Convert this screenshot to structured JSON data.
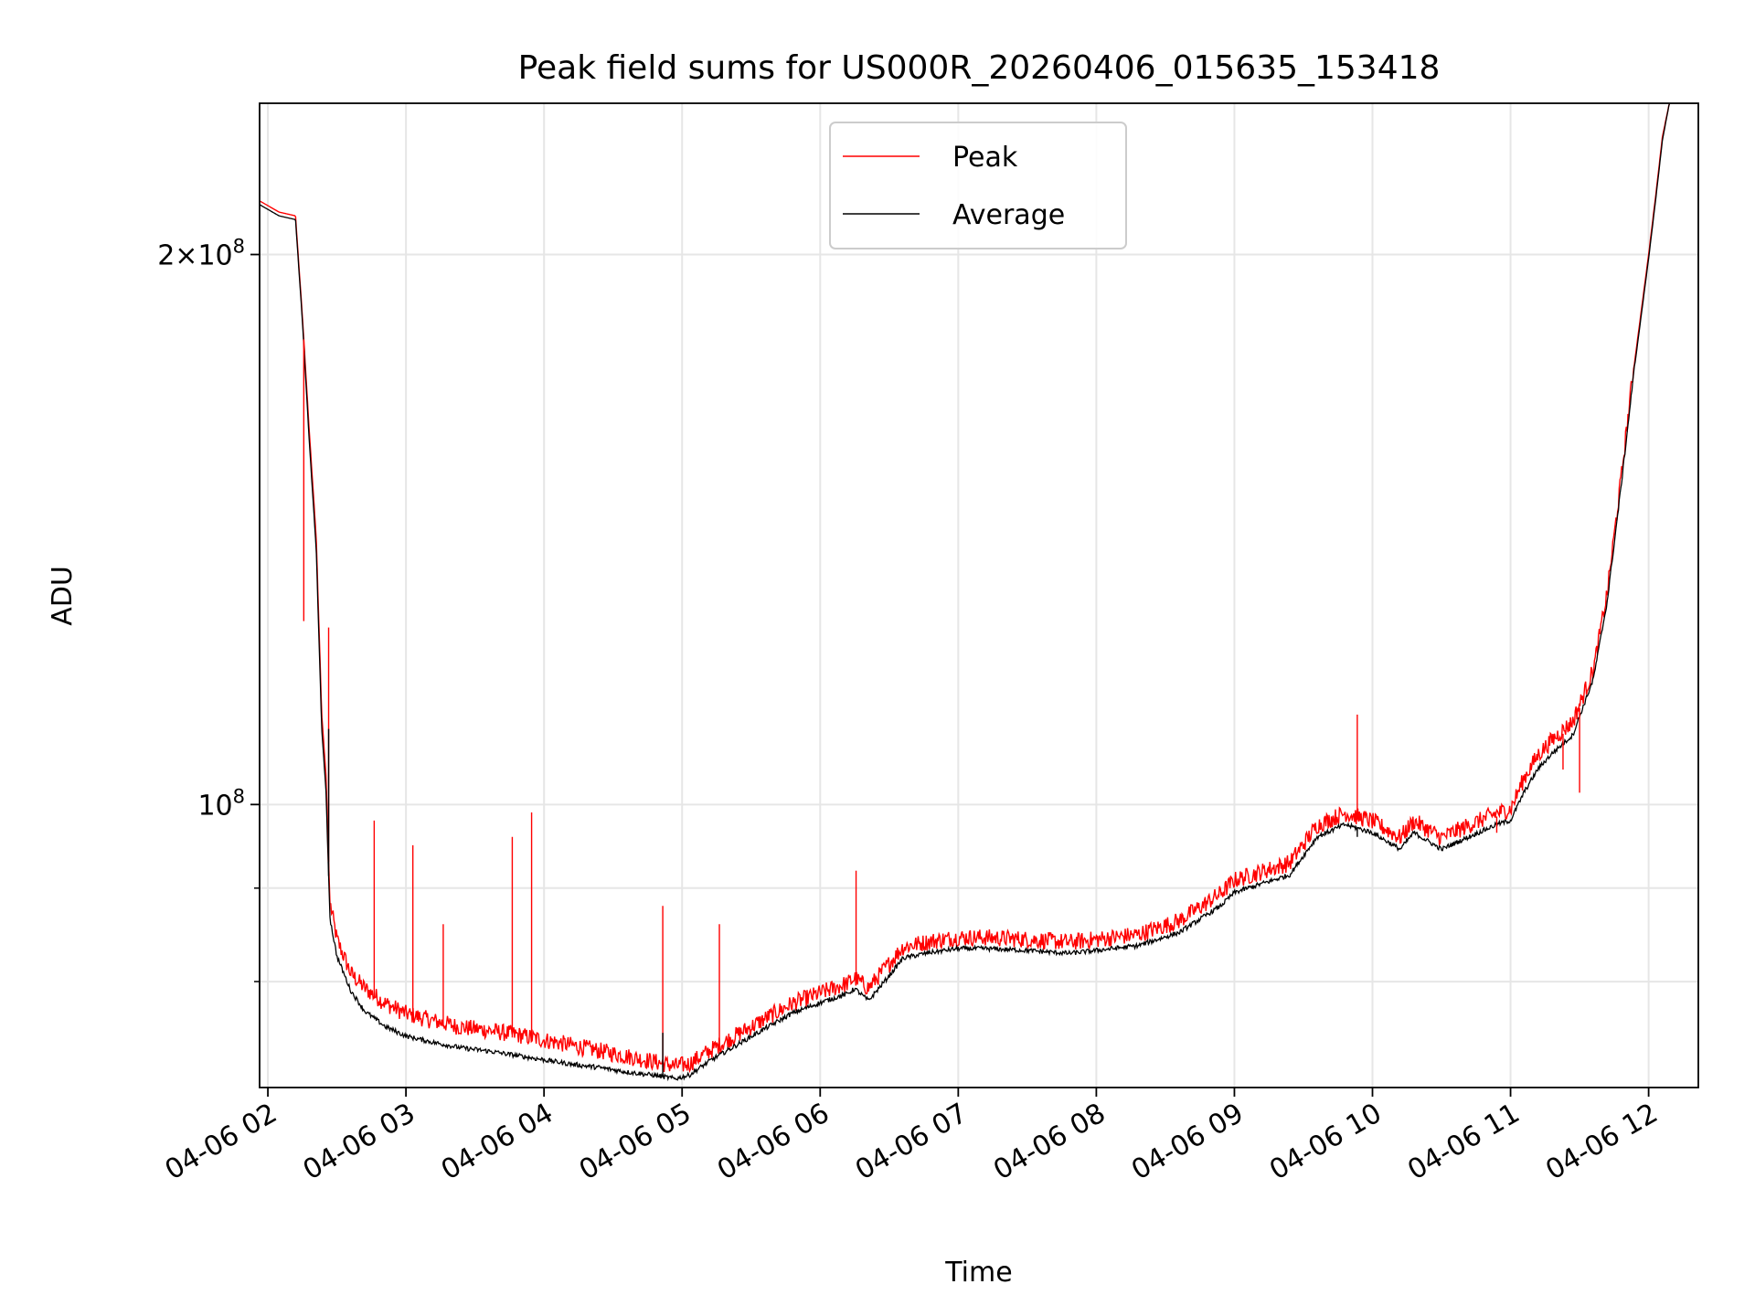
{
  "colors": {
    "peak": "#ff0000",
    "average": "#000000",
    "grid": "#e6e6e6",
    "axes": "#000000",
    "background": "#ffffff"
  },
  "chart_data": {
    "type": "line",
    "title": "Peak field sums for US000R_20260406_015635_153418",
    "xlabel": "Time",
    "ylabel": "ADU",
    "x_unit": "hours since 04-06 00:00",
    "xlim": [
      1.94,
      12.36
    ],
    "ylim": [
      70000000.0,
      242000000.0
    ],
    "yscale": "log",
    "grid": true,
    "legend_position": "upper center",
    "x_ticks": [
      {
        "value": 2,
        "label": "04-06 02"
      },
      {
        "value": 3,
        "label": "04-06 03"
      },
      {
        "value": 4,
        "label": "04-06 04"
      },
      {
        "value": 5,
        "label": "04-06 05"
      },
      {
        "value": 6,
        "label": "04-06 06"
      },
      {
        "value": 7,
        "label": "04-06 07"
      },
      {
        "value": 8,
        "label": "04-06 08"
      },
      {
        "value": 9,
        "label": "04-06 09"
      },
      {
        "value": 10,
        "label": "04-06 10"
      },
      {
        "value": 11,
        "label": "04-06 11"
      },
      {
        "value": 12,
        "label": "04-06 12"
      }
    ],
    "y_major_ticks": [
      {
        "value": 100000000,
        "base": "10",
        "exp": "8",
        "prefix": ""
      },
      {
        "value": 200000000,
        "base": "10",
        "exp": "8",
        "prefix": "2×"
      }
    ],
    "y_minor_ticks": [
      80000000,
      90000000
    ],
    "series": [
      {
        "name": "Peak",
        "color": "#ff0000",
        "x": [
          1.94,
          2.08,
          2.2,
          2.25,
          2.3,
          2.35,
          2.39,
          2.42,
          2.45,
          2.5,
          2.6,
          2.7,
          2.85,
          3.0,
          3.2,
          3.4,
          3.6,
          3.8,
          4.0,
          4.2,
          4.4,
          4.6,
          4.8,
          4.95,
          5.05,
          5.2,
          5.4,
          5.6,
          5.8,
          6.0,
          6.2,
          6.25,
          6.35,
          6.5,
          6.6,
          6.8,
          7.0,
          7.2,
          7.5,
          7.8,
          8.0,
          8.3,
          8.6,
          8.9,
          9.0,
          9.2,
          9.4,
          9.6,
          9.8,
          10.0,
          10.2,
          10.3,
          10.5,
          10.7,
          10.9,
          11.0,
          11.1,
          11.2,
          11.3,
          11.45,
          11.6,
          11.7,
          11.8,
          11.9,
          12.0,
          12.05,
          12.1,
          12.15,
          12.36
        ],
        "y": [
          214000000,
          211000000,
          210000000,
          185000000,
          160000000,
          140000000,
          112000000,
          104000000,
          88000000,
          84000000,
          80500000,
          79000000,
          77500000,
          76500000,
          75800000,
          75200000,
          74900000,
          74500000,
          74000000,
          73500000,
          73000000,
          72500000,
          72000000,
          71600000,
          71800000,
          73000000,
          74500000,
          76000000,
          77500000,
          78500000,
          79500000,
          80000000,
          79000000,
          81500000,
          83200000,
          83800000,
          84200000,
          84200000,
          84000000,
          83700000,
          84000000,
          84500000,
          86000000,
          89000000,
          90500000,
          91500000,
          92500000,
          97000000,
          98500000,
          97500000,
          95500000,
          97500000,
          95500000,
          97000000,
          98500000,
          99000000,
          103000000,
          106000000,
          108000000,
          110500000,
          118000000,
          130000000,
          150000000,
          175000000,
          200000000,
          215000000,
          232000000,
          242000000,
          242000000
        ]
      },
      {
        "name": "Average",
        "color": "#000000",
        "x": [
          1.94,
          2.08,
          2.2,
          2.25,
          2.3,
          2.35,
          2.39,
          2.42,
          2.45,
          2.5,
          2.6,
          2.7,
          2.85,
          3.0,
          3.2,
          3.4,
          3.6,
          3.8,
          4.0,
          4.2,
          4.4,
          4.6,
          4.8,
          4.95,
          5.05,
          5.2,
          5.4,
          5.6,
          5.8,
          6.0,
          6.2,
          6.25,
          6.35,
          6.5,
          6.6,
          6.8,
          7.0,
          7.2,
          7.5,
          7.8,
          8.0,
          8.3,
          8.6,
          8.9,
          9.0,
          9.2,
          9.4,
          9.6,
          9.8,
          10.0,
          10.2,
          10.3,
          10.5,
          10.7,
          10.9,
          11.0,
          11.1,
          11.2,
          11.3,
          11.45,
          11.6,
          11.7,
          11.8,
          11.9,
          12.0,
          12.05,
          12.1,
          12.15,
          12.36
        ],
        "y": [
          213000000,
          210000000,
          209000000,
          184000000,
          158000000,
          138000000,
          110000000,
          102000000,
          86500000,
          82500000,
          79000000,
          77000000,
          75500000,
          74600000,
          74000000,
          73500000,
          73200000,
          72800000,
          72400000,
          72000000,
          71700000,
          71300000,
          71000000,
          70700000,
          71000000,
          72300000,
          73800000,
          75300000,
          76800000,
          77800000,
          78700000,
          79200000,
          78000000,
          80500000,
          82300000,
          82900000,
          83300000,
          83300000,
          83100000,
          82800000,
          83100000,
          83600000,
          85000000,
          87900000,
          89400000,
          90400000,
          91400000,
          95900000,
          97400000,
          96400000,
          94400000,
          96400000,
          94400000,
          95900000,
          97400000,
          97900000,
          101500000,
          104500000,
          106500000,
          109000000,
          117000000,
          129000000,
          149000000,
          174000000,
          199000000,
          214000000,
          231000000,
          242000000,
          242000000
        ]
      }
    ],
    "spikes": [
      {
        "series": "Peak",
        "x": 2.44,
        "y": 125000000
      },
      {
        "series": "Peak",
        "x": 2.26,
        "y": 126000000
      },
      {
        "series": "Peak",
        "x": 2.77,
        "y": 98000000
      },
      {
        "series": "Peak",
        "x": 3.05,
        "y": 95000000
      },
      {
        "series": "Peak",
        "x": 3.27,
        "y": 86000000
      },
      {
        "series": "Peak",
        "x": 3.77,
        "y": 96000000
      },
      {
        "series": "Peak",
        "x": 3.91,
        "y": 99000000
      },
      {
        "series": "Peak",
        "x": 4.86,
        "y": 88000000
      },
      {
        "series": "Peak",
        "x": 5.27,
        "y": 86000000
      },
      {
        "series": "Peak",
        "x": 6.26,
        "y": 92000000
      },
      {
        "series": "Peak",
        "x": 9.89,
        "y": 112000000
      },
      {
        "series": "Peak",
        "x": 10.9,
        "y": 96500000
      },
      {
        "series": "Peak",
        "x": 11.38,
        "y": 104500000
      },
      {
        "series": "Peak",
        "x": 11.5,
        "y": 101500000
      },
      {
        "series": "Average",
        "x": 2.44,
        "y": 110000000
      },
      {
        "series": "Average",
        "x": 4.86,
        "y": 75000000
      },
      {
        "series": "Average",
        "x": 9.89,
        "y": 96000000
      }
    ]
  }
}
